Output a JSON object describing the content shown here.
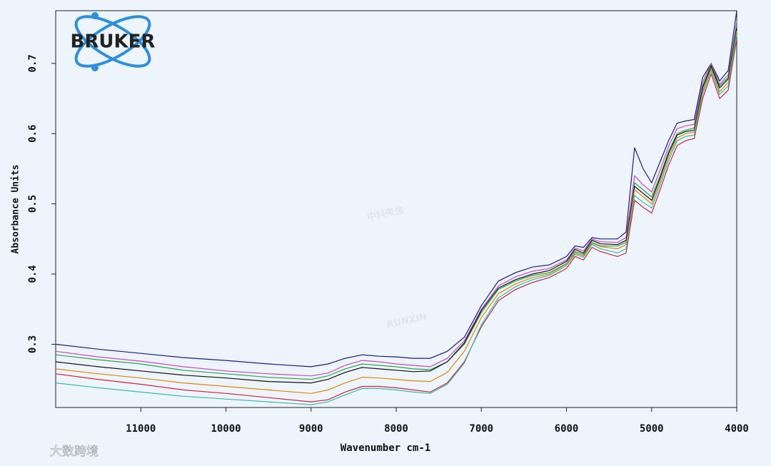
{
  "chart_data": {
    "type": "line",
    "logo": "BRUKER",
    "watermark": [
      "中科荣信",
      "RUNXIN"
    ],
    "credit": "大数跨境",
    "x_label": "Wavenumber cm-1",
    "y_label": "Absorbance Units",
    "xlim": [
      12000,
      4000
    ],
    "xticks": [
      11000,
      10000,
      9000,
      8000,
      7000,
      6000,
      5000,
      4000
    ],
    "ylim": [
      0.21,
      0.775
    ],
    "yticks": [
      0.3,
      0.4,
      0.5,
      0.6,
      0.7
    ],
    "grid": false,
    "x": [
      12000,
      11500,
      11000,
      10500,
      10000,
      9500,
      9000,
      8800,
      8600,
      8400,
      8200,
      8000,
      7800,
      7600,
      7400,
      7200,
      7000,
      6800,
      6600,
      6400,
      6200,
      6000,
      5900,
      5800,
      5700,
      5600,
      5400,
      5300,
      5200,
      5100,
      5000,
      4900,
      4800,
      4700,
      4600,
      4500,
      4400,
      4300,
      4200,
      4100,
      4000
    ],
    "series": [
      {
        "color": "#1a1a8c",
        "values": [
          0.3,
          0.293,
          0.287,
          0.281,
          0.277,
          0.272,
          0.268,
          0.272,
          0.28,
          0.285,
          0.283,
          0.282,
          0.28,
          0.28,
          0.29,
          0.31,
          0.355,
          0.39,
          0.402,
          0.41,
          0.413,
          0.425,
          0.44,
          0.438,
          0.452,
          0.45,
          0.45,
          0.46,
          0.58,
          0.55,
          0.53,
          0.56,
          0.59,
          0.615,
          0.618,
          0.62,
          0.68,
          0.7,
          0.675,
          0.69,
          0.775
        ]
      },
      {
        "color": "#cc44cc",
        "values": [
          0.29,
          0.282,
          0.276,
          0.268,
          0.262,
          0.258,
          0.255,
          0.259,
          0.27,
          0.277,
          0.275,
          0.272,
          0.27,
          0.268,
          0.28,
          0.305,
          0.35,
          0.383,
          0.396,
          0.404,
          0.408,
          0.42,
          0.437,
          0.433,
          0.45,
          0.446,
          0.445,
          0.452,
          0.54,
          0.527,
          0.517,
          0.548,
          0.582,
          0.607,
          0.611,
          0.613,
          0.673,
          0.7,
          0.67,
          0.684,
          0.76
        ]
      },
      {
        "color": "#22aa44",
        "values": [
          0.285,
          0.278,
          0.272,
          0.263,
          0.258,
          0.253,
          0.25,
          0.255,
          0.265,
          0.272,
          0.27,
          0.268,
          0.265,
          0.264,
          0.275,
          0.3,
          0.345,
          0.378,
          0.39,
          0.398,
          0.402,
          0.415,
          0.432,
          0.428,
          0.445,
          0.44,
          0.44,
          0.445,
          0.53,
          0.52,
          0.51,
          0.54,
          0.575,
          0.6,
          0.605,
          0.608,
          0.668,
          0.698,
          0.668,
          0.68,
          0.755
        ]
      },
      {
        "color": "#111111",
        "values": [
          0.275,
          0.268,
          0.262,
          0.256,
          0.252,
          0.247,
          0.245,
          0.25,
          0.26,
          0.267,
          0.265,
          0.263,
          0.261,
          0.262,
          0.275,
          0.302,
          0.348,
          0.38,
          0.392,
          0.4,
          0.405,
          0.418,
          0.435,
          0.43,
          0.448,
          0.443,
          0.442,
          0.448,
          0.525,
          0.515,
          0.505,
          0.537,
          0.572,
          0.598,
          0.603,
          0.605,
          0.665,
          0.696,
          0.665,
          0.678,
          0.75
        ]
      },
      {
        "color": "#dd8800",
        "values": [
          0.265,
          0.258,
          0.252,
          0.245,
          0.24,
          0.235,
          0.23,
          0.235,
          0.245,
          0.253,
          0.252,
          0.25,
          0.248,
          0.247,
          0.26,
          0.29,
          0.338,
          0.372,
          0.386,
          0.395,
          0.4,
          0.414,
          0.43,
          0.426,
          0.444,
          0.439,
          0.436,
          0.442,
          0.52,
          0.51,
          0.5,
          0.532,
          0.567,
          0.594,
          0.6,
          0.602,
          0.66,
          0.693,
          0.66,
          0.673,
          0.746
        ]
      },
      {
        "color": "#cc2244",
        "values": [
          0.258,
          0.25,
          0.243,
          0.235,
          0.23,
          0.224,
          0.218,
          0.221,
          0.232,
          0.24,
          0.24,
          0.238,
          0.235,
          0.232,
          0.245,
          0.275,
          0.325,
          0.362,
          0.378,
          0.388,
          0.395,
          0.408,
          0.425,
          0.42,
          0.438,
          0.432,
          0.425,
          0.43,
          0.505,
          0.495,
          0.487,
          0.52,
          0.555,
          0.583,
          0.59,
          0.593,
          0.65,
          0.685,
          0.65,
          0.662,
          0.735
        ]
      },
      {
        "color": "#33bbaa",
        "values": [
          0.245,
          0.238,
          0.232,
          0.226,
          0.222,
          0.218,
          0.214,
          0.218,
          0.228,
          0.237,
          0.237,
          0.235,
          0.232,
          0.23,
          0.243,
          0.273,
          0.328,
          0.366,
          0.382,
          0.392,
          0.398,
          0.412,
          0.428,
          0.424,
          0.442,
          0.436,
          0.43,
          0.436,
          0.512,
          0.502,
          0.494,
          0.527,
          0.562,
          0.59,
          0.596,
          0.598,
          0.656,
          0.69,
          0.656,
          0.668,
          0.742
        ]
      }
    ]
  }
}
